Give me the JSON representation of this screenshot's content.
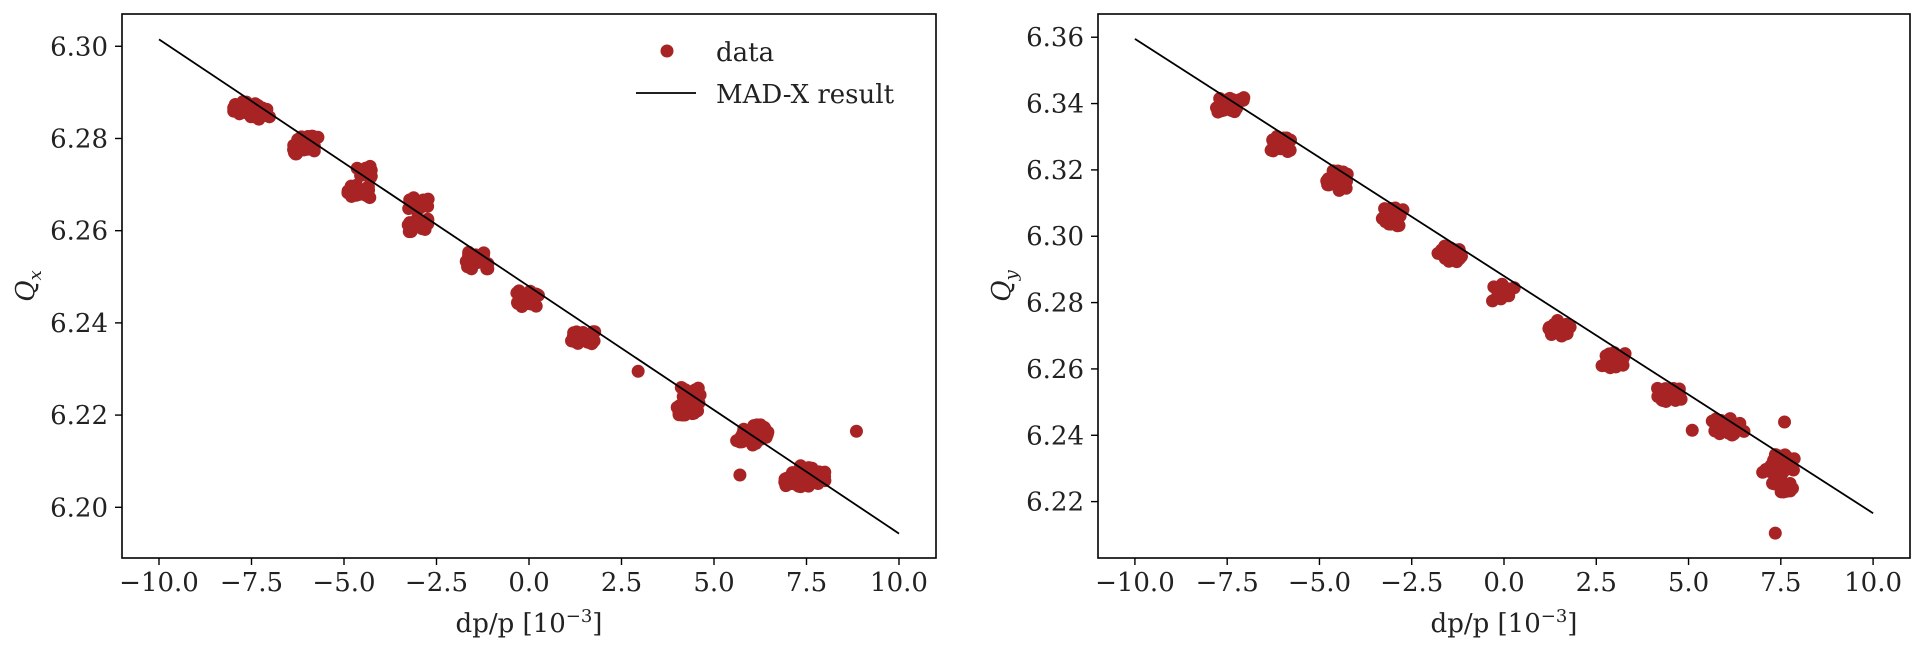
{
  "colors": {
    "data": "#a82424",
    "line": "#000000",
    "axes": "#000000"
  },
  "chart_data": [
    {
      "type": "scatter",
      "xlabel": "dp/p [10",
      "xlabel_sup": "−3",
      "xlabel_close": "]",
      "ylabel": "Q",
      "ylabel_sub": "x",
      "xlim": [
        -11.0,
        11.0
      ],
      "ylim": [
        6.189,
        6.307
      ],
      "xticks": [
        -10.0,
        -7.5,
        -5.0,
        -2.5,
        0.0,
        2.5,
        5.0,
        7.5,
        10.0
      ],
      "xtick_labels": [
        "−10.0",
        "−7.5",
        "−5.0",
        "−2.5",
        "0.0",
        "2.5",
        "5.0",
        "7.5",
        "10.0"
      ],
      "yticks": [
        6.2,
        6.22,
        6.24,
        6.26,
        6.28,
        6.3
      ],
      "ytick_labels": [
        "6.20",
        "6.22",
        "6.24",
        "6.26",
        "6.28",
        "6.30"
      ],
      "legend": {
        "placement": "top-right",
        "entries": [
          {
            "label": "data",
            "kind": "marker"
          },
          {
            "label": "MAD-X result",
            "kind": "line"
          }
        ]
      },
      "series": [
        {
          "name": "data",
          "kind": "scatter",
          "points": [
            {
              "x": -7.5,
              "y": 6.2855
            },
            {
              "x": -7.3,
              "y": 6.2862
            },
            {
              "x": -7.7,
              "y": 6.2868
            },
            {
              "x": -6.0,
              "y": 6.279
            },
            {
              "x": -6.1,
              "y": 6.278
            },
            {
              "x": -4.5,
              "y": 6.2728
            },
            {
              "x": -4.6,
              "y": 6.2685
            },
            {
              "x": -3.0,
              "y": 6.2658
            },
            {
              "x": -3.0,
              "y": 6.261
            },
            {
              "x": -1.5,
              "y": 6.2538
            },
            {
              "x": -1.4,
              "y": 6.2532
            },
            {
              "x": 0.0,
              "y": 6.2455
            },
            {
              "x": -0.05,
              "y": 6.245
            },
            {
              "x": 1.5,
              "y": 6.2375
            },
            {
              "x": 1.4,
              "y": 6.237
            },
            {
              "x": 2.95,
              "y": 6.2295
            },
            {
              "x": 4.4,
              "y": 6.225
            },
            {
              "x": 4.4,
              "y": 6.222
            },
            {
              "x": 4.3,
              "y": 6.2215
            },
            {
              "x": 5.9,
              "y": 6.215
            },
            {
              "x": 6.1,
              "y": 6.2165
            },
            {
              "x": 6.2,
              "y": 6.216
            },
            {
              "x": 5.7,
              "y": 6.207
            },
            {
              "x": 7.5,
              "y": 6.206
            },
            {
              "x": 7.4,
              "y": 6.2075
            },
            {
              "x": 7.7,
              "y": 6.2065
            },
            {
              "x": 7.2,
              "y": 6.206
            },
            {
              "x": 8.85,
              "y": 6.2165
            }
          ]
        },
        {
          "name": "MAD-X result",
          "kind": "line",
          "points": [
            {
              "x": -10.0,
              "y": 6.3015
            },
            {
              "x": 10.0,
              "y": 6.1943
            }
          ]
        }
      ]
    },
    {
      "type": "scatter",
      "xlabel": "dp/p [10",
      "xlabel_sup": "−3",
      "xlabel_close": "]",
      "ylabel": "Q",
      "ylabel_sub": "y",
      "xlim": [
        -11.0,
        11.0
      ],
      "ylim": [
        6.203,
        6.367
      ],
      "xticks": [
        -10.0,
        -7.5,
        -5.0,
        -2.5,
        0.0,
        2.5,
        5.0,
        7.5,
        10.0
      ],
      "xtick_labels": [
        "−10.0",
        "−7.5",
        "−5.0",
        "−2.5",
        "0.0",
        "2.5",
        "5.0",
        "7.5",
        "10.0"
      ],
      "yticks": [
        6.22,
        6.24,
        6.26,
        6.28,
        6.3,
        6.32,
        6.34,
        6.36
      ],
      "ytick_labels": [
        "6.22",
        "6.24",
        "6.26",
        "6.28",
        "6.30",
        "6.32",
        "6.34",
        "6.36"
      ],
      "legend": null,
      "series": [
        {
          "name": "data",
          "kind": "scatter",
          "points": [
            {
              "x": -7.5,
              "y": 6.3395
            },
            {
              "x": -7.3,
              "y": 6.34
            },
            {
              "x": -6.0,
              "y": 6.328
            },
            {
              "x": -6.1,
              "y": 6.3275
            },
            {
              "x": -4.5,
              "y": 6.318
            },
            {
              "x": -4.55,
              "y": 6.3155
            },
            {
              "x": -3.0,
              "y": 6.3065
            },
            {
              "x": -3.0,
              "y": 6.3045
            },
            {
              "x": -1.5,
              "y": 6.295
            },
            {
              "x": -1.45,
              "y": 6.294
            },
            {
              "x": 0.0,
              "y": 6.2835
            },
            {
              "x": -0.05,
              "y": 6.2825
            },
            {
              "x": 1.5,
              "y": 6.273
            },
            {
              "x": 1.55,
              "y": 6.272
            },
            {
              "x": 3.0,
              "y": 6.263
            },
            {
              "x": 2.95,
              "y": 6.262
            },
            {
              "x": 4.45,
              "y": 6.2525
            },
            {
              "x": 4.5,
              "y": 6.252
            },
            {
              "x": 5.1,
              "y": 6.2415
            },
            {
              "x": 5.9,
              "y": 6.243
            },
            {
              "x": 6.1,
              "y": 6.2425
            },
            {
              "x": 6.3,
              "y": 6.242
            },
            {
              "x": 7.6,
              "y": 6.244
            },
            {
              "x": 7.5,
              "y": 6.233
            },
            {
              "x": 7.6,
              "y": 6.2315
            },
            {
              "x": 7.3,
              "y": 6.2305
            },
            {
              "x": 7.55,
              "y": 6.225
            },
            {
              "x": 7.35,
              "y": 6.2105
            }
          ]
        },
        {
          "name": "MAD-X result",
          "kind": "line",
          "points": [
            {
              "x": -10.0,
              "y": 6.3595
            },
            {
              "x": 10.0,
              "y": 6.2165
            }
          ]
        }
      ]
    }
  ]
}
